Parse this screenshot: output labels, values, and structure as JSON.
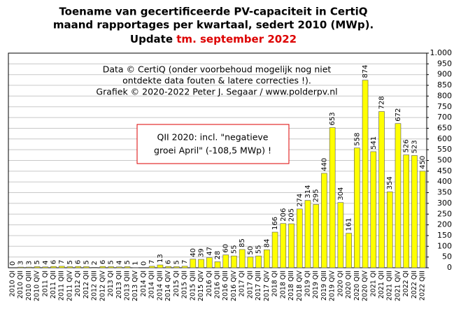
{
  "chart_data": {
    "type": "bar",
    "title": [
      "Toename van gecertificeerde PV-capaciteit in CertiQ",
      "maand rapportages per kwartaal, sedert 2010 (MWp)."
    ],
    "update_label": "Update",
    "update_period": "tm. september 2022",
    "update_color": "#dd0000",
    "annotations": [
      "Data © CertiQ (onder voorbehoud mogelijk  nog niet",
      "ontdekte data fouten & latere correcties !).",
      "Grafiek  © 2020-2022 Peter J. Segaar / www.polderpv.nl"
    ],
    "note": [
      "QII 2020:  incl. \"negatieve",
      "groei April\"  (-108,5 MWp)  !"
    ],
    "note_border": "#dd0000",
    "categories": [
      "2010 QI",
      "2010 QII",
      "2010 QIII",
      "2010 QIV",
      "2011 QI",
      "2011 QII",
      "2011 QIII",
      "2011 QIV",
      "2012 QI",
      "2012 QII",
      "2012 QIII",
      "2012 QIV",
      "2013 QI",
      "2013 QII",
      "2013 QIII",
      "2013 QIV",
      "2014 QI",
      "2014 QII",
      "2014 QIII",
      "2014 QIV",
      "2015 QI",
      "2015 QII",
      "2015 QIII",
      "2015 QIV",
      "2016 QI",
      "2016 QII",
      "2016 QIII",
      "2016 QIV",
      "2017 QI",
      "2017 QII",
      "2017 QIII",
      "2017 QIV",
      "2018 QI",
      "2018 QII",
      "2018 QIII",
      "2018 QIV",
      "2019 QI",
      "2019 QII",
      "2019 QIII",
      "2019 QIV",
      "2020 QI",
      "2020 QII",
      "2020 QIII",
      "2020 QIV",
      "2021 QI",
      "2021 QII",
      "2021 QIII",
      "2021 QIV",
      "2022 QI",
      "2022 QII",
      "2022 QIII"
    ],
    "values": [
      0,
      3,
      3,
      5,
      4,
      6,
      7,
      5,
      6,
      5,
      2,
      6,
      5,
      4,
      5,
      1,
      0,
      7,
      13,
      6,
      5,
      7,
      40,
      39,
      47,
      28,
      60,
      55,
      85,
      50,
      55,
      84,
      166,
      206,
      205,
      274,
      314,
      295,
      440,
      653,
      304,
      161,
      558,
      874,
      541,
      728,
      354,
      672,
      526,
      523,
      450
    ],
    "color": "#ffff00",
    "highlight_category": "2020 QIV",
    "highlight_color": "#c00000",
    "ylim": [
      0,
      1000
    ],
    "yticks": [
      0,
      50,
      100,
      150,
      200,
      250,
      300,
      350,
      400,
      450,
      500,
      550,
      600,
      650,
      700,
      750,
      800,
      850,
      900,
      950,
      {
        "value": 1000,
        "label": "1.000"
      }
    ],
    "grid": true,
    "y_axis_side": "right"
  }
}
